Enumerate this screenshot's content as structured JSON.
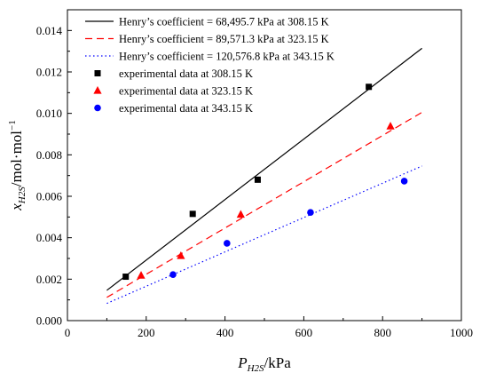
{
  "chart_data": {
    "type": "scatter",
    "title": "",
    "xlabel_main": "P",
    "xlabel_sub": "H2S",
    "xlabel_unit": "/kPa",
    "ylabel_main": "x",
    "ylabel_sub": "H2S",
    "ylabel_unit": "/mol·mol",
    "ylabel_exp": "−1",
    "xlim": [
      0,
      1000
    ],
    "ylim": [
      0,
      0.015
    ],
    "xticks": [
      0,
      200,
      400,
      600,
      800,
      1000
    ],
    "xtick_labels": [
      "0",
      "200",
      "400",
      "600",
      "800",
      "1000"
    ],
    "yticks": [
      0,
      0.002,
      0.004,
      0.006,
      0.008,
      0.01,
      0.012,
      0.014
    ],
    "ytick_labels": [
      "0.000",
      "0.002",
      "0.004",
      "0.006",
      "0.008",
      "0.010",
      "0.012",
      "0.014"
    ],
    "legend_position": "top-left",
    "lines": [
      {
        "name": "Henry’s coefficient = 68,495.7 kPa at 308.15 K",
        "style": "solid",
        "color": "#000000",
        "x": [
          100,
          900
        ],
        "y": [
          0.00146,
          0.01314
        ]
      },
      {
        "name": "Henry’s coefficient = 89,571.3 kPa at 323.15 K",
        "style": "dashed",
        "color": "#ff0000",
        "x": [
          100,
          900
        ],
        "y": [
          0.00112,
          0.01005
        ]
      },
      {
        "name": "Henry’s coefficient = 120,576.8 kPa at 343.15 K",
        "style": "dotted",
        "color": "#0000ff",
        "x": [
          100,
          900
        ],
        "y": [
          0.00083,
          0.00746
        ]
      }
    ],
    "series": [
      {
        "name": "experimental data at 308.15 K",
        "marker": "square",
        "color": "#000000",
        "x": [
          148,
          318,
          483,
          765
        ],
        "y": [
          0.00212,
          0.00515,
          0.0068,
          0.01128
        ]
      },
      {
        "name": "experimental data at 323.15 K",
        "marker": "triangle",
        "color": "#ff0000",
        "x": [
          187,
          288,
          440,
          820
        ],
        "y": [
          0.00218,
          0.00313,
          0.00512,
          0.00938
        ]
      },
      {
        "name": "experimental data at 343.15 K",
        "marker": "circle",
        "color": "#0000ff",
        "x": [
          268,
          405,
          617,
          855
        ],
        "y": [
          0.00222,
          0.00373,
          0.00522,
          0.00673
        ]
      }
    ]
  }
}
